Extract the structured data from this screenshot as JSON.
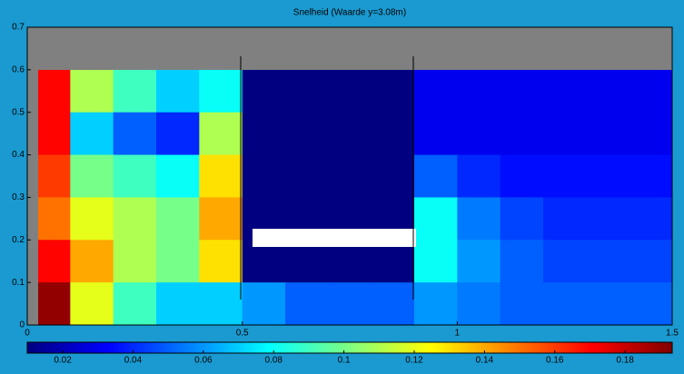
{
  "chart_data": {
    "type": "heatmap",
    "title": "Snelheid (Waarde y=3.08m)",
    "x_bins": [
      0,
      0.1,
      0.2,
      0.3,
      0.4,
      0.5,
      0.6,
      0.7,
      0.8,
      0.9,
      1.0,
      1.1,
      1.2,
      1.3,
      1.4,
      1.5
    ],
    "y_bins": [
      0.6,
      0.5,
      0.4,
      0.3,
      0.2,
      0.1,
      0
    ],
    "values": [
      [
        0.17,
        0.11,
        0.09,
        0.07,
        0.08,
        0.01,
        0.01,
        0.01,
        0.01,
        0.03,
        0.03,
        0.03,
        0.03,
        0.03,
        0.03
      ],
      [
        0.17,
        0.07,
        0.05,
        0.04,
        0.11,
        0.01,
        0.01,
        0.01,
        0.01,
        0.03,
        0.03,
        0.03,
        0.03,
        0.03,
        0.03
      ],
      [
        0.16,
        0.1,
        0.09,
        0.08,
        0.13,
        0.01,
        0.01,
        0.01,
        0.01,
        0.05,
        0.04,
        0.035,
        0.035,
        0.035,
        0.035
      ],
      [
        0.15,
        0.12,
        0.11,
        0.1,
        0.14,
        0.01,
        0.01,
        0.01,
        0.01,
        0.08,
        0.055,
        0.045,
        0.04,
        0.04,
        0.04
      ],
      [
        0.17,
        0.14,
        0.11,
        0.1,
        0.13,
        0.01,
        0.01,
        0.01,
        0.01,
        0.08,
        0.06,
        0.05,
        0.045,
        0.045,
        0.045
      ],
      [
        0.19,
        0.12,
        0.09,
        0.07,
        0.07,
        0.06,
        0.05,
        0.05,
        0.05,
        0.06,
        0.055,
        0.05,
        0.05,
        0.05,
        0.05
      ]
    ],
    "xlim": [
      0,
      1.5
    ],
    "ylim": [
      0,
      0.7
    ],
    "xticks": [
      0,
      0.5,
      1,
      1.5
    ],
    "yticks": [
      0,
      0.1,
      0.2,
      0.3,
      0.4,
      0.5,
      0.6,
      0.7
    ],
    "clim": [
      0.0099,
      0.1934
    ],
    "cticks": [
      0.02,
      0.04,
      0.06,
      0.08,
      0.1,
      0.12,
      0.14,
      0.16,
      0.18
    ],
    "colormap": "jet"
  }
}
